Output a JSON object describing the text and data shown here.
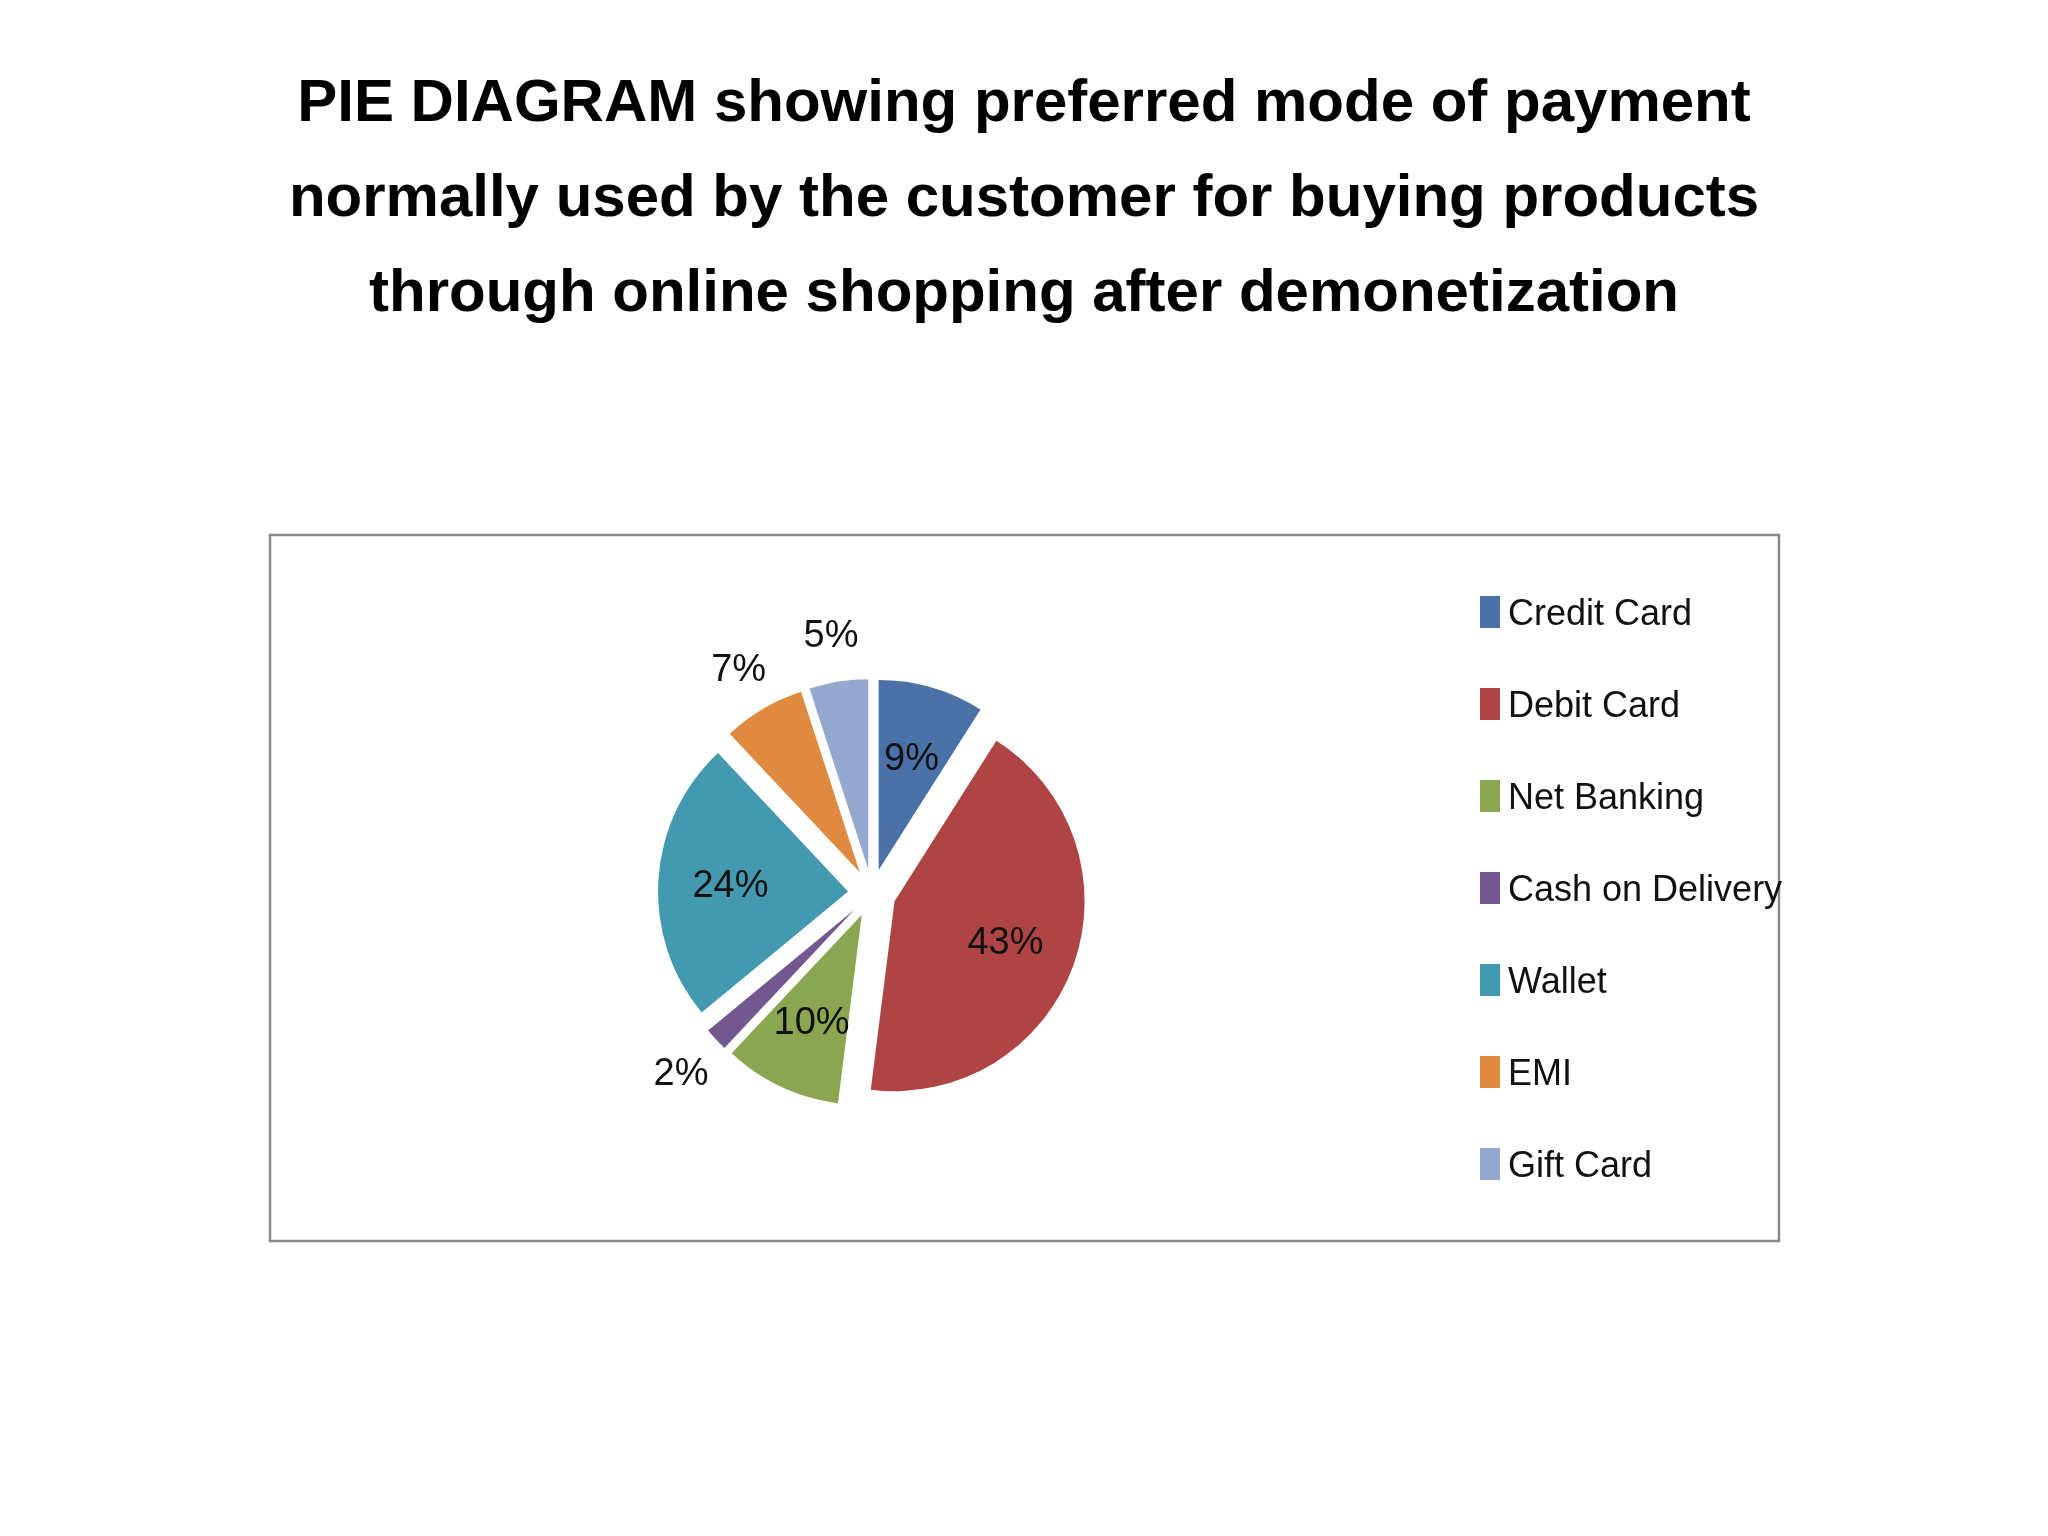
{
  "chart_data": {
    "type": "pie",
    "title": "PIE DIAGRAM showing preferred mode of payment normally used by the customer for buying products through online shopping after demonetization",
    "categories": [
      "Credit Card",
      "Debit Card",
      "Net Banking",
      "Cash on Delivery",
      "Wallet",
      "EMI",
      "Gift Card"
    ],
    "values": [
      9,
      43,
      10,
      2,
      24,
      7,
      5
    ],
    "colors": [
      "#4a72a8",
      "#ae4544",
      "#8aa650",
      "#72588f",
      "#4299b0",
      "#df8a40",
      "#94a8d0"
    ],
    "value_labels": [
      "9%",
      "43%",
      "10%",
      "2%",
      "24%",
      "7%",
      "5%"
    ],
    "legend": "right"
  }
}
